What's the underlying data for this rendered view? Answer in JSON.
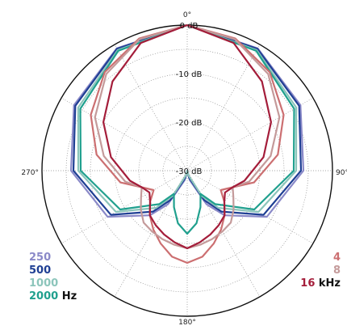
{
  "chart_data": {
    "type": "line",
    "subtype": "polar",
    "title": "",
    "angle_labels": [
      "0°",
      "90°",
      "180°",
      "270°"
    ],
    "radial_labels": [
      "0 dB",
      "-10 dB",
      "-20 dB",
      "-30 dB"
    ],
    "rlim": [
      -30,
      0
    ],
    "grid": true,
    "grid_style": "dotted",
    "angle_grid_step_deg": 30,
    "legend_left": {
      "items": [
        {
          "label": "250",
          "color": "#8a89c8"
        },
        {
          "label": "500",
          "color": "#1f3f94"
        },
        {
          "label": "1000",
          "color": "#8cc5bb"
        },
        {
          "label": "2000",
          "color": "#20a08e"
        }
      ],
      "unit": "Hz"
    },
    "legend_right": {
      "items": [
        {
          "label": "4",
          "color": "#cc6f71"
        },
        {
          "label": "8",
          "color": "#c49a9a"
        },
        {
          "label": "16",
          "color": "#a41d3a"
        }
      ],
      "unit": "kHz"
    },
    "series": [
      {
        "name": "250",
        "color": "#8a89c8",
        "points": [
          [
            0,
            0
          ],
          [
            30,
            -0.9
          ],
          [
            60,
            -3.0
          ],
          [
            90,
            -6.0
          ],
          [
            120,
            -11
          ],
          [
            140,
            -18
          ],
          [
            150,
            -22
          ],
          [
            165,
            -28
          ],
          [
            180,
            -30
          ],
          [
            195,
            -28
          ],
          [
            210,
            -22
          ],
          [
            220,
            -18
          ],
          [
            240,
            -11
          ],
          [
            270,
            -6.0
          ],
          [
            300,
            -3.0
          ],
          [
            330,
            -0.9
          ],
          [
            360,
            0
          ]
        ]
      },
      {
        "name": "500",
        "color": "#1f3f94",
        "points": [
          [
            0,
            0
          ],
          [
            30,
            -1.0
          ],
          [
            60,
            -3.3
          ],
          [
            90,
            -6.5
          ],
          [
            120,
            -11.8
          ],
          [
            140,
            -19
          ],
          [
            150,
            -23
          ],
          [
            165,
            -28.5
          ],
          [
            180,
            -30
          ],
          [
            195,
            -28.5
          ],
          [
            210,
            -23
          ],
          [
            220,
            -19
          ],
          [
            240,
            -11.8
          ],
          [
            270,
            -6.5
          ],
          [
            300,
            -3.3
          ],
          [
            330,
            -1.0
          ],
          [
            360,
            0
          ]
        ]
      },
      {
        "name": "1000",
        "color": "#8cc5bb",
        "points": [
          [
            0,
            0
          ],
          [
            30,
            -1.3
          ],
          [
            60,
            -4.0
          ],
          [
            90,
            -7.5
          ],
          [
            120,
            -13
          ],
          [
            140,
            -20
          ],
          [
            150,
            -24
          ],
          [
            165,
            -29
          ],
          [
            180,
            -30
          ],
          [
            195,
            -29
          ],
          [
            210,
            -24
          ],
          [
            220,
            -20
          ],
          [
            240,
            -13
          ],
          [
            270,
            -7.5
          ],
          [
            300,
            -4.0
          ],
          [
            330,
            -1.3
          ],
          [
            360,
            0
          ]
        ]
      },
      {
        "name": "2000",
        "color": "#20a08e",
        "points": [
          [
            0,
            0
          ],
          [
            30,
            -1.5
          ],
          [
            60,
            -4.5
          ],
          [
            90,
            -8
          ],
          [
            120,
            -14
          ],
          [
            140,
            -21
          ],
          [
            150,
            -24.5
          ],
          [
            160,
            -22
          ],
          [
            170,
            -19
          ],
          [
            180,
            -17
          ],
          [
            190,
            -19
          ],
          [
            200,
            -22
          ],
          [
            210,
            -24.5
          ],
          [
            220,
            -21
          ],
          [
            240,
            -14
          ],
          [
            270,
            -8
          ],
          [
            300,
            -4.5
          ],
          [
            330,
            -1.5
          ],
          [
            360,
            0
          ]
        ]
      },
      {
        "name": "4",
        "color": "#cc6f71",
        "points": [
          [
            0,
            0
          ],
          [
            20,
            -1.0
          ],
          [
            40,
            -3.5
          ],
          [
            60,
            -7
          ],
          [
            80,
            -11
          ],
          [
            100,
            -16
          ],
          [
            110,
            -20
          ],
          [
            120,
            -22
          ],
          [
            130,
            -20
          ],
          [
            140,
            -18
          ],
          [
            150,
            -16
          ],
          [
            160,
            -14
          ],
          [
            170,
            -12
          ],
          [
            180,
            -11
          ],
          [
            190,
            -12
          ],
          [
            200,
            -14
          ],
          [
            210,
            -16
          ],
          [
            220,
            -18
          ],
          [
            230,
            -20
          ],
          [
            240,
            -22
          ],
          [
            250,
            -20
          ],
          [
            260,
            -16
          ],
          [
            280,
            -11
          ],
          [
            300,
            -7
          ],
          [
            320,
            -3.5
          ],
          [
            340,
            -1.0
          ],
          [
            360,
            0
          ]
        ]
      },
      {
        "name": "8",
        "color": "#c49a9a",
        "points": [
          [
            0,
            0
          ],
          [
            20,
            -1.2
          ],
          [
            40,
            -4
          ],
          [
            60,
            -8
          ],
          [
            80,
            -12.5
          ],
          [
            100,
            -17
          ],
          [
            110,
            -20
          ],
          [
            120,
            -19
          ],
          [
            130,
            -17.5
          ],
          [
            140,
            -16
          ],
          [
            150,
            -15.5
          ],
          [
            160,
            -15
          ],
          [
            170,
            -14.5
          ],
          [
            180,
            -14
          ],
          [
            190,
            -14.5
          ],
          [
            200,
            -15
          ],
          [
            210,
            -15.5
          ],
          [
            220,
            -16
          ],
          [
            230,
            -17.5
          ],
          [
            240,
            -19
          ],
          [
            250,
            -20
          ],
          [
            260,
            -17
          ],
          [
            280,
            -12.5
          ],
          [
            300,
            -8
          ],
          [
            320,
            -4
          ],
          [
            340,
            -1.2
          ],
          [
            360,
            0
          ]
        ]
      },
      {
        "name": "16",
        "color": "#a41d3a",
        "points": [
          [
            0,
            0
          ],
          [
            20,
            -2
          ],
          [
            40,
            -6
          ],
          [
            60,
            -10
          ],
          [
            80,
            -14
          ],
          [
            100,
            -18
          ],
          [
            110,
            -20
          ],
          [
            120,
            -21
          ],
          [
            130,
            -20
          ],
          [
            140,
            -18
          ],
          [
            150,
            -17
          ],
          [
            160,
            -16
          ],
          [
            170,
            -15
          ],
          [
            180,
            -14
          ],
          [
            190,
            -15
          ],
          [
            200,
            -16
          ],
          [
            210,
            -17
          ],
          [
            220,
            -18
          ],
          [
            230,
            -20
          ],
          [
            240,
            -21
          ],
          [
            250,
            -20
          ],
          [
            260,
            -18
          ],
          [
            280,
            -14
          ],
          [
            300,
            -10
          ],
          [
            320,
            -6
          ],
          [
            340,
            -2
          ],
          [
            360,
            0
          ]
        ]
      }
    ]
  }
}
